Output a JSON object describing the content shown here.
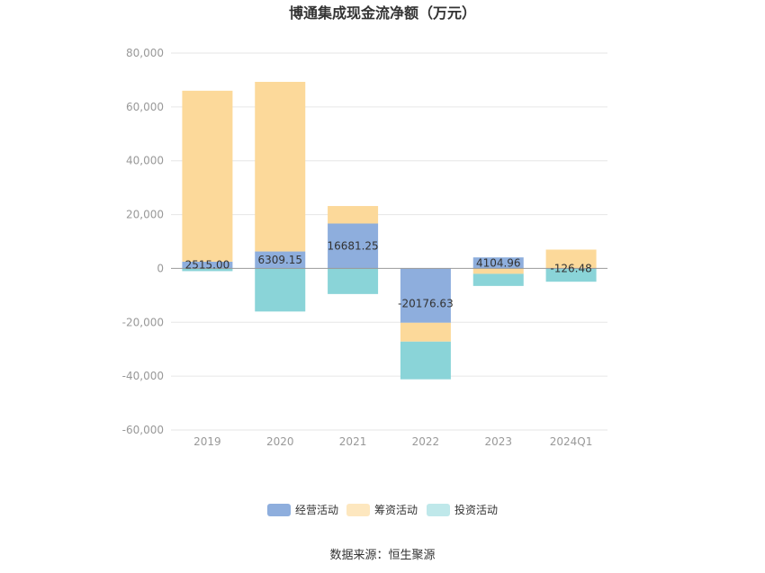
{
  "chart_data": {
    "type": "bar",
    "stacked": true,
    "title": "博通集成现金流净额（万元）",
    "categories": [
      "2019",
      "2020",
      "2021",
      "2022",
      "2023",
      "2024Q1"
    ],
    "series": [
      {
        "name": "经营活动",
        "color": "#8eaedd",
        "values": [
          2515.0,
          6309.15,
          16681.25,
          -20176.63,
          4104.96,
          -126.48
        ]
      },
      {
        "name": "筹资活动",
        "color": "#fcd99a",
        "values": [
          63500,
          63000,
          6500,
          -7000,
          -2000,
          7000
        ]
      },
      {
        "name": "投资活动",
        "color": "#8ad4d8",
        "values": [
          -1000,
          -16000,
          -9500,
          -14000,
          -4500,
          -4800
        ]
      }
    ],
    "data_labels": [
      "2515.00",
      "6309.15",
      "16681.25",
      "-20176.63",
      "4104.96",
      "-126.48"
    ],
    "ylim": [
      -60000,
      80000
    ],
    "yticks": [
      "80,000",
      "60,000",
      "40,000",
      "20,000",
      "0",
      "-20,000",
      "-40,000",
      "-60,000"
    ],
    "ytick_values": [
      80000,
      60000,
      40000,
      20000,
      0,
      -20000,
      -40000,
      -60000
    ],
    "grid": true,
    "legend_position": "bottom-center",
    "legend": [
      {
        "label": "经营活动",
        "color": "#8eaedd"
      },
      {
        "label": "筹资活动",
        "color": "#fde7bf"
      },
      {
        "label": "投资活动",
        "color": "#bfe8ea"
      }
    ],
    "source": "数据来源：恒生聚源"
  }
}
